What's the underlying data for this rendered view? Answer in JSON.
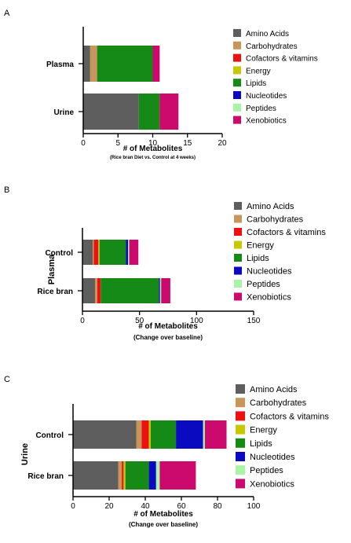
{
  "chart_data": [
    {
      "panel": "A",
      "type": "bar",
      "orientation": "horizontal",
      "stacked": true,
      "categories": [
        "Plasma",
        "Urine"
      ],
      "series": [
        {
          "name": "Amino Acids",
          "values": [
            1,
            8
          ]
        },
        {
          "name": "Carbohydrates",
          "values": [
            1,
            0
          ]
        },
        {
          "name": "Cofactors & vitamins",
          "values": [
            0,
            0
          ]
        },
        {
          "name": "Energy",
          "values": [
            0,
            0
          ]
        },
        {
          "name": "Lipids",
          "values": [
            8,
            3
          ]
        },
        {
          "name": "Nucleotides",
          "values": [
            0,
            0
          ]
        },
        {
          "name": "Peptides",
          "values": [
            0,
            0
          ]
        },
        {
          "name": "Xenobiotics",
          "values": [
            1,
            2.7
          ]
        }
      ],
      "xlabel": "# of Metabolites",
      "xsublabel": "(Rice bran Diet vs. Control at 4 weeks)",
      "ylabel": "",
      "xlim": [
        0,
        20
      ],
      "xticks": [
        0,
        5,
        10,
        15,
        20
      ],
      "legend": "right"
    },
    {
      "panel": "B",
      "type": "bar",
      "orientation": "horizontal",
      "stacked": true,
      "categories": [
        "Control",
        "Rice bran"
      ],
      "series": [
        {
          "name": "Amino Acids",
          "values": [
            9,
            11
          ]
        },
        {
          "name": "Carbohydrates",
          "values": [
            1,
            2
          ]
        },
        {
          "name": "Cofactors & vitamins",
          "values": [
            4,
            3
          ]
        },
        {
          "name": "Energy",
          "values": [
            1,
            0
          ]
        },
        {
          "name": "Lipids",
          "values": [
            23,
            51
          ]
        },
        {
          "name": "Nucleotides",
          "values": [
            2,
            1
          ]
        },
        {
          "name": "Peptides",
          "values": [
            1,
            1
          ]
        },
        {
          "name": "Xenobiotics",
          "values": [
            8,
            8
          ]
        }
      ],
      "xlabel": "# of Metabolites",
      "xsublabel": "(Change over baseline)",
      "ylabel": "Plasma",
      "xlim": [
        0,
        150
      ],
      "xticks": [
        0,
        50,
        100,
        150
      ],
      "legend": "right"
    },
    {
      "panel": "C",
      "type": "bar",
      "orientation": "horizontal",
      "stacked": true,
      "categories": [
        "Control",
        "Rice bran"
      ],
      "series": [
        {
          "name": "Amino Acids",
          "values": [
            35,
            25
          ]
        },
        {
          "name": "Carbohydrates",
          "values": [
            3,
            2
          ]
        },
        {
          "name": "Cofactors & vitamins",
          "values": [
            4,
            1
          ]
        },
        {
          "name": "Energy",
          "values": [
            1,
            1
          ]
        },
        {
          "name": "Lipids",
          "values": [
            14,
            13
          ]
        },
        {
          "name": "Nucleotides",
          "values": [
            15,
            4
          ]
        },
        {
          "name": "Peptides",
          "values": [
            1,
            2
          ]
        },
        {
          "name": "Xenobiotics",
          "values": [
            12,
            20
          ]
        }
      ],
      "xlabel": "# of Metabolites",
      "xsublabel": "(Change over baseline)",
      "ylabel": "Urine",
      "xlim": [
        0,
        100
      ],
      "xticks": [
        0,
        20,
        40,
        60,
        80,
        100
      ],
      "legend": "right"
    }
  ],
  "colors": [
    "#5e5e5e",
    "#c8965a",
    "#ee1111",
    "#c8c800",
    "#168a16",
    "#0a0ac0",
    "#a8f5a8",
    "#cc0a6e"
  ]
}
